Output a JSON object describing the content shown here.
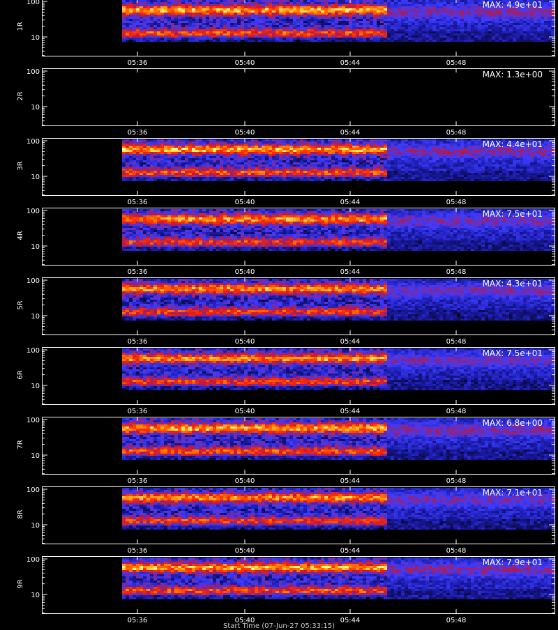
{
  "chart_data": {
    "type": "heatmap",
    "x_ticks": [
      "05:36",
      "05:40",
      "05:44",
      "05:48"
    ],
    "y_ticks": [
      "100",
      "10"
    ],
    "yscale": "log",
    "colormap": [
      "#000000",
      "#1a1aa8",
      "#3c3cff",
      "#b01a50",
      "#ff2a00",
      "#ff8c00",
      "#ffff80"
    ],
    "panels": [
      {
        "label": "1R",
        "max_text": "MAX: 4.9e+01",
        "intensity": 1.0
      },
      {
        "label": "2R",
        "max_text": "MAX: 1.3e+00",
        "intensity": 0.0
      },
      {
        "label": "3R",
        "max_text": "MAX: 4.4e+01",
        "intensity": 1.0
      },
      {
        "label": "4R",
        "max_text": "MAX: 7.5e+01",
        "intensity": 0.95
      },
      {
        "label": "5R",
        "max_text": "MAX: 4.3e+01",
        "intensity": 0.95
      },
      {
        "label": "6R",
        "max_text": "MAX: 7.5e+01",
        "intensity": 0.95
      },
      {
        "label": "7R",
        "max_text": "MAX: 6.8e+00",
        "intensity": 1.0
      },
      {
        "label": "8R",
        "max_text": "MAX: 7.1e+01",
        "intensity": 0.95
      },
      {
        "label": "9R",
        "max_text": "MAX: 7.9e+01",
        "intensity": 1.0
      }
    ]
  },
  "footer": {
    "text": "Start Time (07-Jun-27 05:33:15)"
  }
}
